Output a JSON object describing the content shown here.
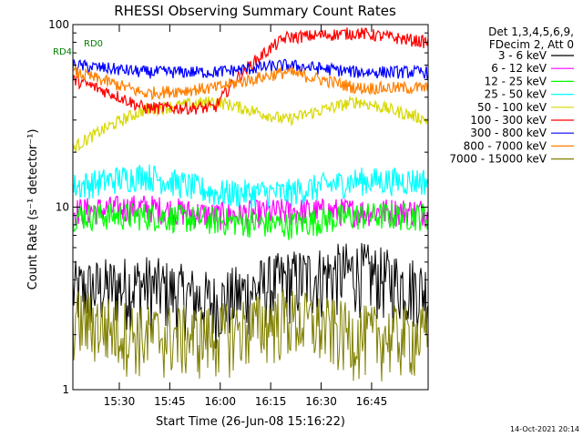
{
  "chart_data": {
    "type": "line",
    "title": "RHESSI Observing Summary Count Rates",
    "xlabel": "Start Time (26-Jun-08 15:16:22)",
    "ylabel": "Count Rate (s⁻¹ detector⁻¹)",
    "yscale": "log",
    "ylim": [
      1,
      100
    ],
    "xlim_minutes": [
      15.27,
      17.03
    ],
    "x_ticks": [
      "15:30",
      "15:45",
      "16:00",
      "16:15",
      "16:30",
      "16:45"
    ],
    "y_ticks": [
      "1",
      "10",
      "100"
    ],
    "grid": false,
    "legend_position": "right",
    "legend_header": [
      "Det 1,3,4,5,6,9,",
      "FDecim 2, Att 0"
    ],
    "flag_labels": [
      "RD0",
      "RD4"
    ],
    "footer_date": "14-Oct-2021 20:14",
    "series": [
      {
        "name": "3 - 6 keV",
        "color": "#000000",
        "values": [
          3.5,
          3.8,
          3.0,
          4.0,
          4.5,
          3.5
        ]
      },
      {
        "name": "6 - 12 keV",
        "color": "#ff00ff",
        "values": [
          9.5,
          10,
          9.0,
          9.5,
          9.5,
          9.5
        ]
      },
      {
        "name": "12 - 25 keV",
        "color": "#00ff00",
        "values": [
          9.0,
          9.0,
          8.5,
          8.0,
          9.0,
          9.0
        ]
      },
      {
        "name": "25 - 50 keV",
        "color": "#00ffff",
        "values": [
          13,
          15,
          12,
          12,
          14,
          14
        ]
      },
      {
        "name": "50 - 100 keV",
        "color": "#d8d800",
        "values": [
          21,
          34,
          38,
          30,
          38,
          30
        ]
      },
      {
        "name": "100 - 300 keV",
        "color": "#ff0000",
        "values": [
          50,
          35,
          35,
          85,
          90,
          80
        ]
      },
      {
        "name": "300 - 800 keV",
        "color": "#0000ff",
        "values": [
          60,
          55,
          55,
          60,
          55,
          55
        ]
      },
      {
        "name": "800 - 7000 keV",
        "color": "#ff8000",
        "values": [
          55,
          42,
          45,
          55,
          45,
          45
        ]
      },
      {
        "name": "7000 - 15000 keV",
        "color": "#808000",
        "values": [
          2.5,
          2.0,
          2.0,
          2.5,
          2.0,
          2.0
        ]
      }
    ]
  }
}
